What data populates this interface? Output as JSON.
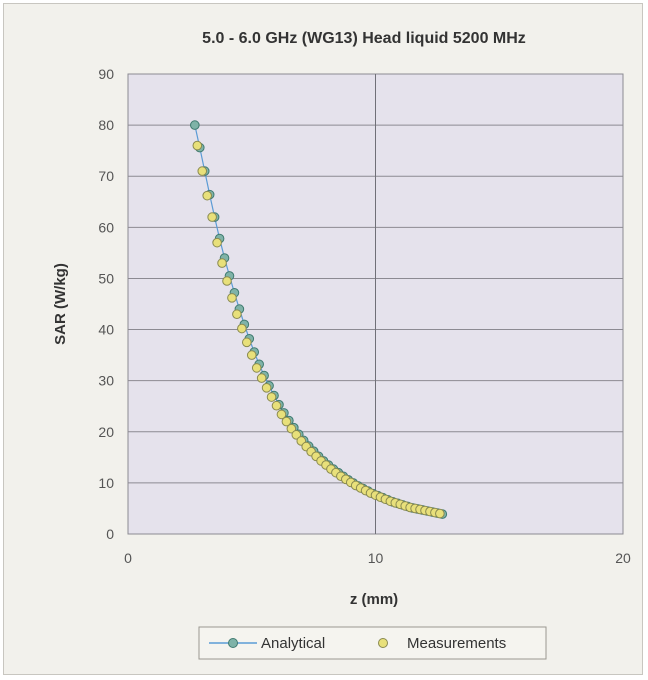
{
  "chart_data": {
    "type": "scatter",
    "title": "5.0 - 6.0 GHz (WG13) Head liquid 5200 MHz",
    "xlabel": "z (mm)",
    "ylabel": "SAR (W/kg)",
    "xlim": [
      0,
      20
    ],
    "ylim": [
      0,
      90
    ],
    "xticks": [
      "0",
      "10",
      "20"
    ],
    "yticks": [
      "0",
      "10",
      "20",
      "30",
      "40",
      "50",
      "60",
      "70",
      "80",
      "90"
    ],
    "grid": "horizontal",
    "legend_position": "bottom",
    "series": [
      {
        "name": "Analytical",
        "marker": "circle-line",
        "color": "#5b9bd5",
        "fill": "#7fb3a8",
        "x": [
          2.7,
          2.9,
          3.1,
          3.3,
          3.5,
          3.7,
          3.9,
          4.1,
          4.3,
          4.5,
          4.7,
          4.9,
          5.1,
          5.3,
          5.5,
          5.7,
          5.9,
          6.1,
          6.3,
          6.5,
          6.7,
          6.9,
          7.1,
          7.3,
          7.5,
          7.7,
          7.9,
          8.1,
          8.3,
          8.5,
          8.7,
          8.9,
          9.1,
          9.3,
          9.5,
          9.7,
          9.9,
          10.1,
          10.3,
          10.5,
          10.7,
          10.9,
          11.1,
          11.3,
          11.5,
          11.7,
          11.9,
          12.1,
          12.3,
          12.5,
          12.7
        ],
        "y": [
          80.0,
          75.6,
          71.0,
          66.4,
          62.0,
          57.8,
          54.0,
          50.5,
          47.2,
          44.0,
          41.0,
          38.2,
          35.6,
          33.2,
          31.0,
          29.0,
          27.1,
          25.3,
          23.7,
          22.2,
          20.8,
          19.5,
          18.3,
          17.2,
          16.2,
          15.2,
          14.3,
          13.5,
          12.7,
          12.0,
          11.3,
          10.6,
          10.0,
          9.4,
          8.9,
          8.4,
          7.9,
          7.5,
          7.1,
          6.7,
          6.3,
          6.0,
          5.7,
          5.4,
          5.1,
          4.9,
          4.7,
          4.5,
          4.3,
          4.1,
          3.9
        ]
      },
      {
        "name": "Measurements",
        "marker": "circle",
        "color": "#e8e07a",
        "edge": "#8a8a50",
        "x": [
          2.8,
          3.0,
          3.2,
          3.4,
          3.6,
          3.8,
          4.0,
          4.2,
          4.4,
          4.6,
          4.8,
          5.0,
          5.2,
          5.4,
          5.6,
          5.8,
          6.0,
          6.2,
          6.4,
          6.6,
          6.8,
          7.0,
          7.2,
          7.4,
          7.6,
          7.8,
          8.0,
          8.2,
          8.4,
          8.6,
          8.8,
          9.0,
          9.2,
          9.4,
          9.6,
          9.8,
          10.0,
          10.2,
          10.4,
          10.6,
          10.8,
          11.0,
          11.2,
          11.4,
          11.6,
          11.8,
          12.0,
          12.2,
          12.4,
          12.6
        ],
        "y": [
          76.0,
          71.0,
          66.2,
          62.0,
          57.0,
          53.0,
          49.5,
          46.2,
          43.0,
          40.2,
          37.5,
          35.0,
          32.5,
          30.5,
          28.6,
          26.8,
          25.1,
          23.4,
          22.0,
          20.6,
          19.4,
          18.2,
          17.1,
          16.1,
          15.2,
          14.3,
          13.5,
          12.7,
          12.0,
          11.3,
          10.7,
          10.1,
          9.5,
          9.0,
          8.5,
          8.0,
          7.6,
          7.2,
          6.8,
          6.4,
          6.1,
          5.8,
          5.5,
          5.2,
          5.0,
          4.8,
          4.6,
          4.4,
          4.2,
          4.0
        ]
      }
    ]
  }
}
